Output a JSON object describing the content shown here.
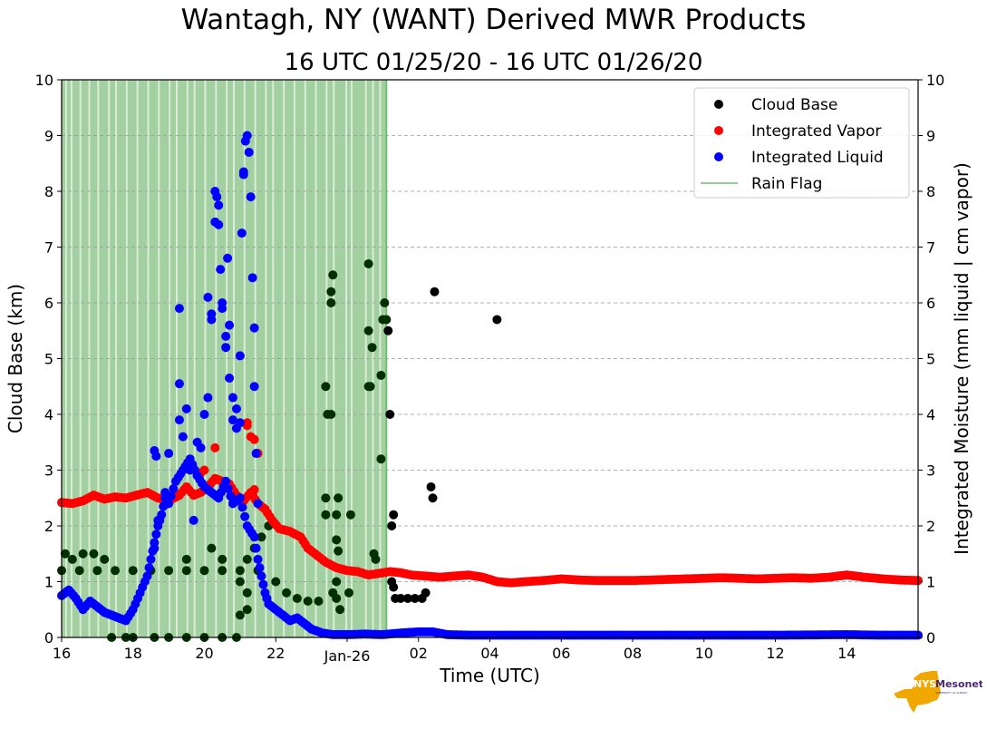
{
  "chart_data": {
    "type": "scatter",
    "title": "Wantagh, NY (WANT) Derived MWR Products",
    "subtitle": "16 UTC 01/25/20 - 16 UTC 01/26/20",
    "xlabel": "Time (UTC)",
    "ylabel": "Cloud Base (km)",
    "ylabel_right": "Integrated Moisture (mm liquid | cm vapor)",
    "x_unit": "hours since 00 UTC 01/25/20",
    "xlim": [
      16,
      40
    ],
    "ylim": [
      0,
      10
    ],
    "ylim_right": [
      0,
      10
    ],
    "x_ticks": [
      16,
      18,
      20,
      22,
      24,
      26,
      28,
      30,
      32,
      34,
      36,
      38
    ],
    "x_tick_labels": [
      "16",
      "18",
      "20",
      "22",
      "Jan-26",
      "02",
      "04",
      "06",
      "08",
      "10",
      "12",
      "14"
    ],
    "y_ticks": [
      0,
      1,
      2,
      3,
      4,
      5,
      6,
      7,
      8,
      9,
      10
    ],
    "grid": "horizontal dashed",
    "legend_position": "top-right",
    "legend": [
      {
        "label": "Cloud Base",
        "marker": "dot",
        "color": "#000000"
      },
      {
        "label": "Integrated Vapor",
        "marker": "dot",
        "color": "#ff0000"
      },
      {
        "label": "Integrated Liquid",
        "marker": "dot",
        "color": "#0000ff"
      },
      {
        "label": "Rain Flag",
        "marker": "line",
        "color": "#6fbf6f"
      }
    ],
    "rain_flag": {
      "start": 16.0,
      "end": 25.1,
      "color": "#a3d0a0",
      "gaps": [
        16.1,
        16.25,
        16.5,
        16.75,
        17.0,
        17.3,
        17.5,
        17.8,
        18.1,
        18.4,
        18.7,
        19.0,
        19.2,
        19.5,
        19.7,
        20.0,
        20.3,
        20.6,
        20.8,
        21.1,
        21.4,
        21.7,
        21.9,
        22.2,
        22.5,
        22.8,
        23.1,
        23.4,
        23.6,
        23.95,
        24.1,
        24.5,
        24.7,
        24.9
      ]
    },
    "series": [
      {
        "name": "Integrated Vapor",
        "color": "#ff0000",
        "points": [
          [
            16.0,
            2.42
          ],
          [
            16.3,
            2.4
          ],
          [
            16.6,
            2.45
          ],
          [
            16.9,
            2.55
          ],
          [
            17.2,
            2.48
          ],
          [
            17.5,
            2.52
          ],
          [
            17.8,
            2.5
          ],
          [
            18.1,
            2.55
          ],
          [
            18.4,
            2.6
          ],
          [
            18.7,
            2.5
          ],
          [
            19.0,
            2.45
          ],
          [
            19.3,
            2.55
          ],
          [
            19.5,
            2.7
          ],
          [
            19.7,
            2.55
          ],
          [
            19.9,
            2.6
          ],
          [
            20.1,
            2.7
          ],
          [
            20.3,
            2.85
          ],
          [
            20.5,
            2.8
          ],
          [
            20.7,
            2.75
          ],
          [
            20.9,
            2.55
          ],
          [
            21.1,
            2.45
          ],
          [
            21.3,
            2.6
          ],
          [
            21.5,
            2.4
          ],
          [
            21.7,
            2.3
          ],
          [
            21.9,
            2.1
          ],
          [
            22.1,
            1.95
          ],
          [
            22.4,
            1.9
          ],
          [
            22.7,
            1.8
          ],
          [
            22.9,
            1.6
          ],
          [
            23.1,
            1.5
          ],
          [
            23.4,
            1.35
          ],
          [
            23.7,
            1.25
          ],
          [
            24.0,
            1.2
          ],
          [
            24.3,
            1.18
          ],
          [
            24.6,
            1.12
          ],
          [
            24.9,
            1.15
          ],
          [
            25.2,
            1.18
          ],
          [
            25.5,
            1.16
          ],
          [
            25.8,
            1.12
          ],
          [
            26.2,
            1.1
          ],
          [
            26.6,
            1.08
          ],
          [
            27.0,
            1.1
          ],
          [
            27.4,
            1.12
          ],
          [
            27.8,
            1.08
          ],
          [
            28.2,
            1.0
          ],
          [
            28.6,
            0.98
          ],
          [
            29.0,
            1.0
          ],
          [
            29.5,
            1.02
          ],
          [
            30.0,
            1.05
          ],
          [
            30.5,
            1.03
          ],
          [
            31.0,
            1.02
          ],
          [
            31.5,
            1.02
          ],
          [
            32.0,
            1.02
          ],
          [
            32.5,
            1.03
          ],
          [
            33.0,
            1.04
          ],
          [
            33.5,
            1.05
          ],
          [
            34.0,
            1.06
          ],
          [
            34.5,
            1.07
          ],
          [
            35.0,
            1.06
          ],
          [
            35.5,
            1.05
          ],
          [
            36.0,
            1.06
          ],
          [
            36.5,
            1.07
          ],
          [
            37.0,
            1.06
          ],
          [
            37.5,
            1.08
          ],
          [
            38.0,
            1.12
          ],
          [
            38.5,
            1.08
          ],
          [
            39.0,
            1.05
          ],
          [
            39.5,
            1.03
          ],
          [
            40.0,
            1.02
          ]
        ],
        "outliers": [
          [
            20.3,
            3.4
          ],
          [
            21.2,
            3.85
          ],
          [
            21.2,
            3.8
          ],
          [
            21.3,
            3.6
          ],
          [
            21.4,
            3.55
          ],
          [
            21.5,
            3.3
          ],
          [
            20.0,
            3.0
          ],
          [
            19.9,
            2.95
          ],
          [
            21.4,
            2.65
          ]
        ]
      },
      {
        "name": "Integrated Liquid",
        "color": "#0000ff",
        "points": [
          [
            16.0,
            0.75
          ],
          [
            16.2,
            0.85
          ],
          [
            16.4,
            0.7
          ],
          [
            16.6,
            0.5
          ],
          [
            16.8,
            0.65
          ],
          [
            17.0,
            0.55
          ],
          [
            17.2,
            0.45
          ],
          [
            17.4,
            0.4
          ],
          [
            17.6,
            0.35
          ],
          [
            17.8,
            0.3
          ],
          [
            18.0,
            0.5
          ],
          [
            18.2,
            0.8
          ],
          [
            18.4,
            1.1
          ],
          [
            18.5,
            1.4
          ],
          [
            18.6,
            1.7
          ],
          [
            18.7,
            2.0
          ],
          [
            18.8,
            2.2
          ],
          [
            18.9,
            2.5
          ],
          [
            19.0,
            2.4
          ],
          [
            19.2,
            2.8
          ],
          [
            19.4,
            3.0
          ],
          [
            19.6,
            3.2
          ],
          [
            19.8,
            2.9
          ],
          [
            20.0,
            2.7
          ],
          [
            20.2,
            2.6
          ],
          [
            20.4,
            2.5
          ],
          [
            20.6,
            2.8
          ],
          [
            20.8,
            2.4
          ],
          [
            21.0,
            2.5
          ],
          [
            21.2,
            2.0
          ],
          [
            21.4,
            1.8
          ],
          [
            21.5,
            1.4
          ],
          [
            21.6,
            1.1
          ],
          [
            21.7,
            0.8
          ],
          [
            21.8,
            0.6
          ],
          [
            22.0,
            0.5
          ],
          [
            22.2,
            0.4
          ],
          [
            22.4,
            0.3
          ],
          [
            22.6,
            0.35
          ],
          [
            22.8,
            0.25
          ],
          [
            23.0,
            0.15
          ],
          [
            23.3,
            0.08
          ],
          [
            23.6,
            0.05
          ],
          [
            24.0,
            0.05
          ],
          [
            24.5,
            0.06
          ],
          [
            25.0,
            0.05
          ],
          [
            25.5,
            0.08
          ],
          [
            26.0,
            0.1
          ],
          [
            26.4,
            0.1
          ],
          [
            26.8,
            0.05
          ],
          [
            27.5,
            0.04
          ],
          [
            28.0,
            0.04
          ],
          [
            29.0,
            0.04
          ],
          [
            30.0,
            0.04
          ],
          [
            32.0,
            0.04
          ],
          [
            34.0,
            0.04
          ],
          [
            36.0,
            0.04
          ],
          [
            38.0,
            0.05
          ],
          [
            39.0,
            0.04
          ],
          [
            40.0,
            0.04
          ]
        ],
        "outliers": [
          [
            19.3,
            5.9
          ],
          [
            19.3,
            4.55
          ],
          [
            19.3,
            3.9
          ],
          [
            19.4,
            3.6
          ],
          [
            19.5,
            4.1
          ],
          [
            19.8,
            3.5
          ],
          [
            19.9,
            3.4
          ],
          [
            20.0,
            4.0
          ],
          [
            20.1,
            4.3
          ],
          [
            20.1,
            6.1
          ],
          [
            20.2,
            5.8
          ],
          [
            20.2,
            5.7
          ],
          [
            20.3,
            8.0
          ],
          [
            20.35,
            7.9
          ],
          [
            20.4,
            7.75
          ],
          [
            20.3,
            7.45
          ],
          [
            20.4,
            7.4
          ],
          [
            20.45,
            6.6
          ],
          [
            20.5,
            6.0
          ],
          [
            20.5,
            5.9
          ],
          [
            20.6,
            5.4
          ],
          [
            20.6,
            5.2
          ],
          [
            20.7,
            5.6
          ],
          [
            20.65,
            6.8
          ],
          [
            20.7,
            4.65
          ],
          [
            20.8,
            4.3
          ],
          [
            20.8,
            3.9
          ],
          [
            20.9,
            4.1
          ],
          [
            20.9,
            3.75
          ],
          [
            21.0,
            3.85
          ],
          [
            21.0,
            5.05
          ],
          [
            21.05,
            7.25
          ],
          [
            21.1,
            8.3
          ],
          [
            21.1,
            8.35
          ],
          [
            21.15,
            8.9
          ],
          [
            21.2,
            9.0
          ],
          [
            21.25,
            8.7
          ],
          [
            21.3,
            7.9
          ],
          [
            21.35,
            6.45
          ],
          [
            21.4,
            5.55
          ],
          [
            21.4,
            4.5
          ],
          [
            21.45,
            3.3
          ],
          [
            21.5,
            2.4
          ],
          [
            19.0,
            3.3
          ],
          [
            18.9,
            2.6
          ],
          [
            18.7,
            2.1
          ],
          [
            18.6,
            1.6
          ],
          [
            18.6,
            3.35
          ],
          [
            18.65,
            3.25
          ],
          [
            19.6,
            3.0
          ],
          [
            19.7,
            2.1
          ]
        ]
      },
      {
        "name": "Cloud Base",
        "color": "#000000",
        "rain_flag_color": "#002f00",
        "points": [
          [
            16.0,
            1.2
          ],
          [
            16.5,
            1.2
          ],
          [
            17.0,
            1.2
          ],
          [
            17.5,
            1.2
          ],
          [
            18.0,
            1.2
          ],
          [
            18.5,
            1.2
          ],
          [
            19.0,
            1.2
          ],
          [
            19.5,
            1.2
          ],
          [
            20.0,
            1.2
          ],
          [
            20.5,
            1.2
          ],
          [
            21.0,
            1.2
          ],
          [
            21.5,
            1.2
          ],
          [
            22.0,
            1.0
          ],
          [
            22.3,
            0.8
          ],
          [
            22.6,
            0.7
          ],
          [
            22.9,
            0.65
          ],
          [
            23.2,
            0.65
          ],
          [
            16.1,
            1.5
          ],
          [
            16.3,
            1.4
          ],
          [
            16.6,
            1.5
          ],
          [
            16.9,
            1.5
          ],
          [
            17.2,
            1.4
          ],
          [
            19.5,
            1.4
          ],
          [
            20.2,
            1.6
          ],
          [
            20.5,
            1.4
          ],
          [
            21.2,
            1.4
          ],
          [
            21.4,
            1.6
          ],
          [
            21.6,
            1.8
          ],
          [
            21.8,
            2.0
          ],
          [
            21.0,
            1.0
          ],
          [
            21.2,
            0.8
          ],
          [
            21.0,
            0.4
          ],
          [
            21.2,
            0.5
          ],
          [
            17.4,
            0.0
          ],
          [
            17.8,
            0.0
          ],
          [
            18.0,
            0.0
          ],
          [
            18.6,
            0.0
          ],
          [
            19.0,
            0.0
          ],
          [
            19.5,
            0.0
          ],
          [
            20.0,
            0.0
          ],
          [
            20.5,
            0.0
          ],
          [
            20.9,
            0.0
          ],
          [
            23.4,
            4.5
          ],
          [
            23.45,
            4.0
          ],
          [
            23.55,
            4.0
          ],
          [
            23.4,
            2.5
          ],
          [
            23.4,
            2.2
          ],
          [
            23.55,
            6.0
          ],
          [
            23.55,
            6.2
          ],
          [
            23.6,
            6.5
          ],
          [
            23.75,
            2.5
          ],
          [
            23.7,
            2.2
          ],
          [
            23.7,
            1.75
          ],
          [
            23.75,
            1.55
          ],
          [
            23.7,
            1.0
          ],
          [
            23.7,
            0.7
          ],
          [
            23.8,
            0.5
          ],
          [
            23.6,
            0.8
          ],
          [
            24.1,
            2.2
          ],
          [
            24.05,
            0.8
          ],
          [
            24.6,
            6.7
          ],
          [
            24.6,
            5.5
          ],
          [
            24.6,
            4.5
          ],
          [
            24.65,
            4.5
          ],
          [
            24.7,
            5.2
          ],
          [
            24.75,
            1.5
          ],
          [
            24.8,
            1.4
          ],
          [
            24.95,
            4.7
          ],
          [
            24.95,
            3.2
          ],
          [
            25.0,
            5.7
          ],
          [
            25.05,
            6.0
          ],
          [
            25.1,
            5.7
          ],
          [
            25.15,
            5.5
          ],
          [
            25.2,
            4.0
          ],
          [
            25.25,
            2.0
          ],
          [
            25.3,
            2.2
          ],
          [
            25.25,
            1.0
          ],
          [
            25.3,
            0.9
          ],
          [
            25.35,
            0.7
          ],
          [
            25.5,
            0.7
          ],
          [
            25.7,
            0.7
          ],
          [
            25.9,
            0.7
          ],
          [
            26.1,
            0.7
          ],
          [
            26.2,
            0.8
          ],
          [
            26.35,
            2.7
          ],
          [
            26.4,
            2.5
          ],
          [
            26.45,
            6.2
          ],
          [
            28.2,
            5.7
          ]
        ]
      }
    ]
  },
  "logo": {
    "text_left": "NYS",
    "text_right": "Mesonet",
    "tagline": "UNIVERSITY AT ALBANY",
    "state_color": "#f0a800",
    "text_color": "#4b2a7a"
  }
}
